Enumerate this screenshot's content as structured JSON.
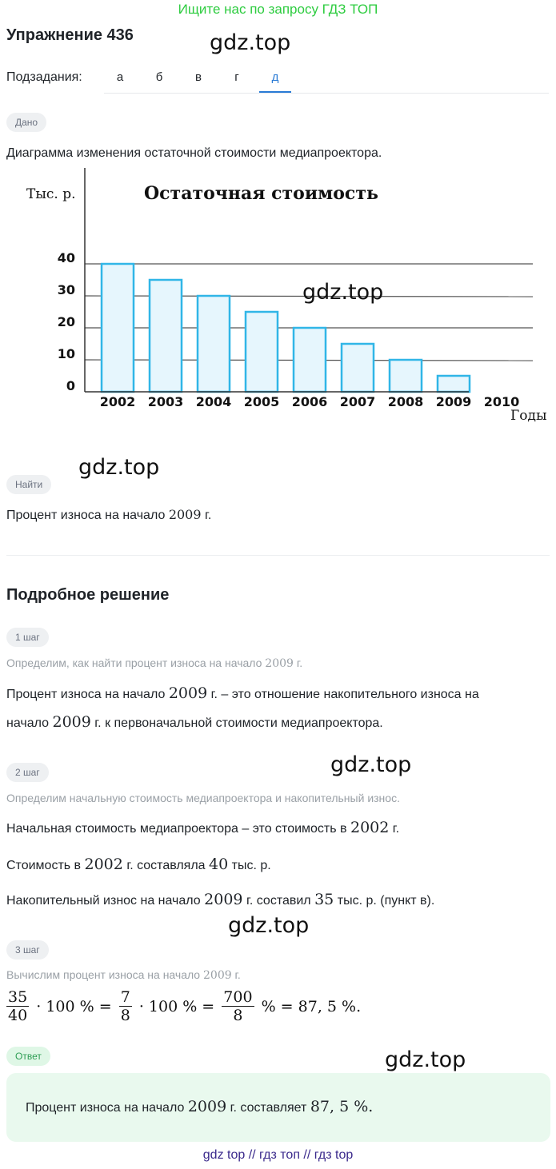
{
  "banner": "Ищите нас по запросу ГДЗ ТОП",
  "exercise_title": "Упражнение 436",
  "watermark": "gdz.top",
  "subtasks": {
    "label": "Подзадания:",
    "tabs": [
      "а",
      "б",
      "в",
      "г",
      "д"
    ],
    "active_index": 4
  },
  "given": {
    "pill": "Дано",
    "text": "Диаграмма изменения остаточной стоимости медиапроектора."
  },
  "chart_data": {
    "type": "bar",
    "title": "Остаточная стоимость",
    "ylabel": "Тыс. р.",
    "xlabel": "Годы",
    "categories": [
      "2002",
      "2003",
      "2004",
      "2005",
      "2006",
      "2007",
      "2008",
      "2009",
      "2010"
    ],
    "values": [
      40,
      35,
      30,
      25,
      20,
      15,
      10,
      5,
      0
    ],
    "yticks": [
      0,
      10,
      20,
      30,
      40
    ],
    "ylim": [
      0,
      40
    ],
    "grid": true,
    "bar_fill": "#e6f6fd",
    "bar_stroke": "#31b6e7"
  },
  "find": {
    "pill": "Найти",
    "text_before": "Процент износа на начало",
    "year": "2009",
    "text_after": "г."
  },
  "solution": {
    "heading": "Подробное решение",
    "steps": [
      {
        "pill": "1 шаг",
        "hint": [
          "Определим, как найти процент износа на начало",
          "2009",
          "г."
        ],
        "lines": [
          [
            "Процент износа на начало",
            "2009",
            "г. – это отношение накопительного износа на"
          ],
          [
            "начало",
            "2009",
            "г. к первоначальной стоимости медиапроектора."
          ]
        ]
      },
      {
        "pill": "2 шаг",
        "hint": "Определим начальную стоимость медиапроектора и накопительный износ.",
        "lines": [
          [
            "Начальная стоимость медиапроектора – это стоимость в",
            "2002",
            "г."
          ],
          [
            "Стоимость в",
            "2002",
            "г. составляла",
            "40",
            "тыс. р."
          ],
          [
            "Накопительный износ на начало",
            "2009",
            "г. составил",
            "35",
            "тыс. р. (пункт в)."
          ]
        ]
      },
      {
        "pill": "3 шаг",
        "hint": [
          "Вычислим процент износа на начало",
          "2009",
          "г."
        ],
        "formula": {
          "f1_num": "35",
          "f1_den": "40",
          "mid1": "· 100 % =",
          "f2_num": "7",
          "f2_den": "8",
          "mid2": "· 100 % =",
          "f3_num": "700",
          "f3_den": "8",
          "tail": "% = 87, 5 %."
        }
      }
    ]
  },
  "answer": {
    "pill": "Ответ",
    "text_before": "Процент износа на начало",
    "year": "2009",
    "text_mid": "г. составляет",
    "value": "87, 5 %."
  },
  "footer": "gdz top  //  гдз топ  //  гдз top"
}
